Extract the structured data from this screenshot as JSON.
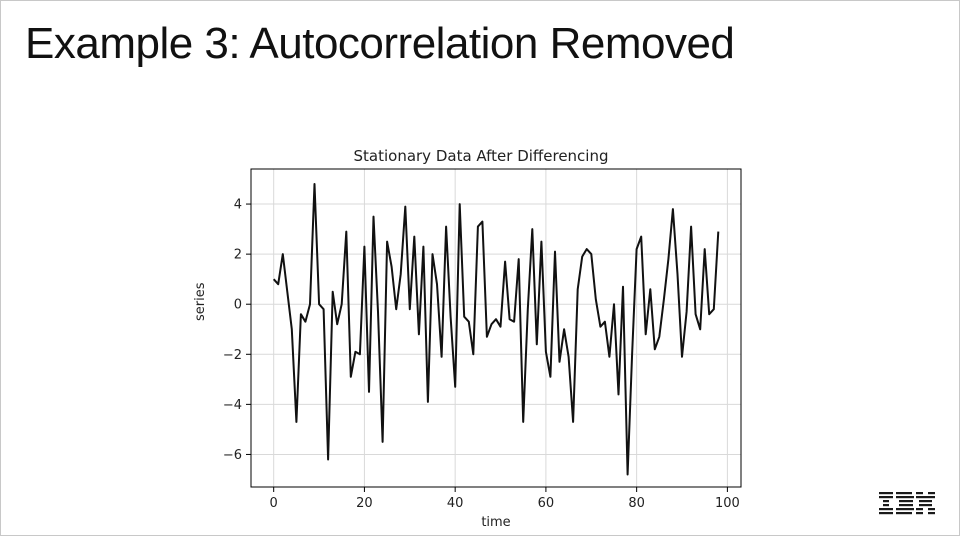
{
  "slide": {
    "title": "Example 3: Autocorrelation Removed",
    "logo_text": "IBM"
  },
  "colors": {
    "line": "#111111",
    "grid": "#d9d9d9",
    "axes": "#000000",
    "text": "#222222"
  },
  "chart_data": {
    "type": "line",
    "title": "Stationary Data After Differencing",
    "xlabel": "time",
    "ylabel": "series",
    "xlim": [
      -5,
      103
    ],
    "ylim": [
      -7.3,
      5.4
    ],
    "xticks": [
      0,
      20,
      40,
      60,
      80,
      100
    ],
    "yticks": [
      -6,
      -4,
      -2,
      0,
      2,
      4
    ],
    "ytick_labels": [
      "−6",
      "−4",
      "−2",
      "0",
      "2",
      "4"
    ],
    "grid": true,
    "series": [
      {
        "x": [
          0,
          1,
          2,
          3,
          4,
          5,
          6,
          7,
          8,
          9,
          10,
          11,
          12,
          13,
          14,
          15,
          16,
          17,
          18,
          19,
          20,
          21,
          22,
          23,
          24,
          25,
          26,
          27,
          28,
          29,
          30,
          31,
          32,
          33,
          34,
          35,
          36,
          37,
          38,
          39,
          40,
          41,
          42,
          43,
          44,
          45,
          46,
          47,
          48,
          49,
          50,
          51,
          52,
          53,
          54,
          55,
          56,
          57,
          58,
          59,
          60,
          61,
          62,
          63,
          64,
          65,
          66,
          67,
          68,
          69,
          70,
          71,
          72,
          73,
          74,
          75,
          76,
          77,
          78,
          79,
          80,
          81,
          82,
          83,
          84,
          85,
          86,
          87,
          88,
          89,
          90,
          91,
          92,
          93,
          94,
          95,
          96,
          97,
          98
        ],
        "values": [
          1.0,
          0.8,
          2.0,
          0.5,
          -1.0,
          -4.7,
          -0.4,
          -0.7,
          0.0,
          4.8,
          0.0,
          -0.2,
          -6.2,
          0.5,
          -0.8,
          0.0,
          2.9,
          -2.9,
          -1.9,
          -2.0,
          2.3,
          -3.5,
          3.5,
          -0.3,
          -5.5,
          2.5,
          1.5,
          -0.2,
          1.2,
          3.9,
          -0.2,
          2.7,
          -1.2,
          2.3,
          -3.9,
          2.0,
          0.8,
          -2.1,
          3.1,
          -0.5,
          -3.3,
          4.0,
          -0.5,
          -0.7,
          -2.0,
          3.1,
          3.3,
          -1.3,
          -0.8,
          -0.6,
          -0.9,
          1.7,
          -0.6,
          -0.7,
          1.8,
          -4.7,
          -0.2,
          3.0,
          -1.6,
          2.5,
          -1.9,
          -2.9,
          2.1,
          -2.3,
          -1.0,
          -2.1,
          -4.7,
          0.6,
          1.9,
          2.2,
          2.0,
          0.2,
          -0.9,
          -0.7,
          -2.1,
          0.0,
          -3.6,
          0.7,
          -6.8,
          -2.0,
          2.2,
          2.7,
          -1.2,
          0.6,
          -1.8,
          -1.3,
          0.2,
          1.8,
          3.8,
          1.2,
          -2.1,
          -0.3,
          3.1,
          -0.4,
          -1.0,
          2.2,
          -0.4,
          -0.2,
          2.9
        ]
      }
    ]
  }
}
